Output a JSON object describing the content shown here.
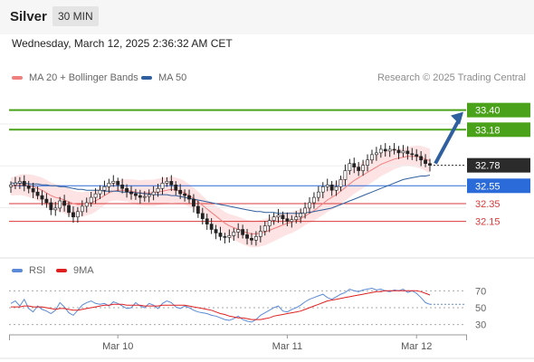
{
  "header": {
    "symbol": "Silver",
    "timeframe": "30 MIN"
  },
  "datetime": "Wednesday, March 12, 2025 2:36:32 AM CET",
  "legend": {
    "ma20": {
      "label": "MA 20 + Bollinger Bands",
      "color": "#f08080"
    },
    "ma50": {
      "label": "MA 50",
      "color": "#2f5f9f"
    }
  },
  "credit": "Research © 2025 Trading Central",
  "rsi_legend": {
    "rsi": {
      "label": "RSI",
      "color": "#5b8ad8"
    },
    "ma9": {
      "label": "9MA",
      "color": "#e02020"
    }
  },
  "chart_data": {
    "type": "candlestick",
    "x_labels": [
      "Mar 10",
      "Mar 11",
      "Mar 12"
    ],
    "current_price": {
      "value": 32.78,
      "label": "32.78"
    },
    "levels": [
      {
        "value": 33.4,
        "label": "33.40",
        "kind": "resistance",
        "color": "#4aa21a"
      },
      {
        "value": 33.18,
        "label": "33.18",
        "kind": "resistance",
        "color": "#4aa21a"
      },
      {
        "value": 32.55,
        "label": "32.55",
        "kind": "pivot",
        "color": "#2b6ad9"
      },
      {
        "value": 32.35,
        "label": "32.35",
        "kind": "support",
        "color": "#d93a3a"
      },
      {
        "value": 32.15,
        "label": "32.15",
        "kind": "support",
        "color": "#d93a3a"
      }
    ],
    "close": [
      32.56,
      32.58,
      32.6,
      32.55,
      32.52,
      32.48,
      32.44,
      32.4,
      32.36,
      32.28,
      32.3,
      32.38,
      32.33,
      32.25,
      32.2,
      32.26,
      32.32,
      32.36,
      32.42,
      32.46,
      32.5,
      32.54,
      32.58,
      32.6,
      32.56,
      32.52,
      32.48,
      32.46,
      32.44,
      32.42,
      32.43,
      32.45,
      32.48,
      32.52,
      32.58,
      32.6,
      32.56,
      32.5,
      32.46,
      32.44,
      32.4,
      32.32,
      32.24,
      32.18,
      32.12,
      32.06,
      32.02,
      31.98,
      31.97,
      31.99,
      32.03,
      32.06,
      32.0,
      31.96,
      31.94,
      31.98,
      32.04,
      32.1,
      32.16,
      32.2,
      32.22,
      32.18,
      32.15,
      32.17,
      32.2,
      32.24,
      32.3,
      32.36,
      32.42,
      32.48,
      32.54,
      32.56,
      32.5,
      32.54,
      32.62,
      32.72,
      32.8,
      32.76,
      32.72,
      32.78,
      32.84,
      32.9,
      32.92,
      32.96,
      32.94,
      32.96,
      32.95,
      32.92,
      32.94,
      32.91,
      32.9,
      32.88,
      32.84,
      32.8,
      32.78
    ],
    "ma20": [
      32.54,
      32.55,
      32.56,
      32.56,
      32.55,
      32.54,
      32.52,
      32.5,
      32.47,
      32.44,
      32.42,
      32.41,
      32.39,
      32.37,
      32.35,
      32.34,
      32.34,
      32.35,
      32.36,
      32.38,
      32.41,
      32.44,
      32.47,
      32.49,
      32.5,
      32.5,
      32.5,
      32.49,
      32.48,
      32.47,
      32.47,
      32.47,
      32.47,
      32.48,
      32.49,
      32.5,
      32.51,
      32.5,
      32.49,
      32.47,
      32.44,
      32.41,
      32.37,
      32.33,
      32.29,
      32.25,
      32.21,
      32.17,
      32.13,
      32.1,
      32.08,
      32.06,
      32.04,
      32.02,
      32.01,
      32.01,
      32.02,
      32.03,
      32.05,
      32.07,
      32.09,
      32.11,
      32.13,
      32.14,
      32.16,
      32.18,
      32.21,
      32.24,
      32.27,
      32.31,
      32.35,
      32.39,
      32.42,
      32.45,
      32.49,
      32.53,
      32.57,
      32.61,
      32.64,
      32.67,
      32.7,
      32.73,
      32.76,
      32.79,
      32.81,
      32.83,
      32.85,
      32.86,
      32.87,
      32.88,
      32.88,
      32.88,
      32.87,
      32.85,
      32.83
    ],
    "ma50": [
      32.58,
      32.58,
      32.58,
      32.58,
      32.57,
      32.57,
      32.57,
      32.56,
      32.56,
      32.55,
      32.55,
      32.54,
      32.54,
      32.53,
      32.52,
      32.51,
      32.51,
      32.5,
      32.5,
      32.5,
      32.5,
      32.49,
      32.49,
      32.49,
      32.49,
      32.48,
      32.48,
      32.48,
      32.47,
      32.47,
      32.46,
      32.46,
      32.45,
      32.45,
      32.45,
      32.45,
      32.44,
      32.44,
      32.43,
      32.42,
      32.41,
      32.4,
      32.39,
      32.38,
      32.37,
      32.36,
      32.35,
      32.34,
      32.33,
      32.32,
      32.31,
      32.3,
      32.29,
      32.28,
      32.27,
      32.26,
      32.26,
      32.25,
      32.25,
      32.25,
      32.24,
      32.24,
      32.24,
      32.24,
      32.24,
      32.24,
      32.25,
      32.25,
      32.26,
      32.27,
      32.28,
      32.29,
      32.3,
      32.32,
      32.34,
      32.36,
      32.38,
      32.4,
      32.42,
      32.44,
      32.46,
      32.48,
      32.5,
      32.52,
      32.54,
      32.56,
      32.58,
      32.6,
      32.62,
      32.63,
      32.64,
      32.65,
      32.66,
      32.66,
      32.67
    ],
    "rsi": {
      "ticks": [
        70,
        50,
        30
      ],
      "ylim": [
        20,
        80
      ],
      "rsi": [
        55,
        58,
        52,
        60,
        49,
        45,
        52,
        48,
        46,
        43,
        47,
        56,
        51,
        44,
        41,
        47,
        53,
        56,
        58,
        55,
        54,
        55,
        52,
        57,
        55,
        52,
        49,
        50,
        56,
        52,
        50,
        55,
        53,
        49,
        55,
        58,
        56,
        51,
        49,
        52,
        50,
        47,
        45,
        44,
        43,
        41,
        40,
        38,
        36,
        35,
        37,
        40,
        36,
        34,
        33,
        36,
        41,
        44,
        47,
        50,
        52,
        46,
        45,
        48,
        50,
        53,
        57,
        60,
        62,
        64,
        66,
        62,
        60,
        63,
        66,
        68,
        72,
        70,
        69,
        71,
        72,
        73,
        71,
        72,
        70,
        69,
        71,
        70,
        72,
        68,
        70,
        67,
        62,
        56,
        54
      ],
      "ma9": [
        51,
        51,
        51,
        52,
        52,
        51,
        51,
        51,
        50,
        49,
        48,
        49,
        49,
        48,
        47,
        47,
        48,
        49,
        50,
        51,
        52,
        53,
        53,
        54,
        54,
        54,
        53,
        53,
        53,
        53,
        52,
        52,
        52,
        52,
        53,
        53,
        53,
        53,
        53,
        53,
        52,
        51,
        50,
        49,
        48,
        47,
        45,
        43,
        42,
        40,
        39,
        38,
        38,
        37,
        36,
        36,
        36,
        37,
        38,
        40,
        41,
        42,
        43,
        44,
        45,
        46,
        48,
        50,
        52,
        54,
        56,
        58,
        59,
        60,
        61,
        62,
        63,
        64,
        65,
        66,
        67,
        68,
        69,
        69,
        70,
        70,
        70,
        70,
        70,
        70,
        70,
        70,
        69,
        67,
        65
      ]
    }
  }
}
